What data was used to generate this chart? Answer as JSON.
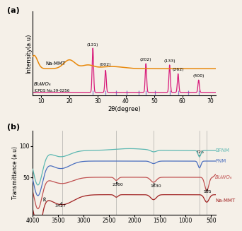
{
  "panel_a": {
    "xlabel": "2θ(degree)",
    "ylabel": "Intensity(a.u)",
    "xlim": [
      7,
      72
    ],
    "xticks": [
      10,
      20,
      30,
      40,
      50,
      60,
      70
    ],
    "na_mmt_color": "#E8880A",
    "bi2wo6_color": "#D81B7A",
    "jcpds_color": "#8878CC",
    "na_mmt_label": "Na-MMT",
    "bi2wo6_label": "Bi₂WO₆",
    "jcpds_label": "JCPDS No.39-0256",
    "peaks_bi2wo6": [
      28.3,
      32.8,
      47.1,
      55.5,
      58.5,
      65.8
    ],
    "peak_labels": [
      "(131)",
      "(002)",
      "(202)",
      "(133)",
      "(262)",
      "(400)"
    ],
    "jcpds_lines": [
      28.3,
      32.8,
      36.5,
      40.2,
      44.5,
      47.1,
      50.3,
      55.5,
      58.5,
      62.1,
      65.8
    ]
  },
  "panel_b": {
    "ylabel": "Transmittance (a.u)",
    "yticks": [
      50,
      100
    ],
    "bfnm_color": "#5CB8B2",
    "fnm_color": "#4B6FBF",
    "bi2wo6_color": "#C05050",
    "nammt_color": "#A02020",
    "bfnm_label": "BFNM",
    "fnm_label": "FNM",
    "bi2wo6_label": "Bi₂WO₆",
    "nammt_label": "Na-MMT",
    "vlines_x": [
      728,
      585,
      1630,
      2360,
      3427
    ],
    "vlines_color": "grey"
  },
  "bg_color": "#F5F0E8"
}
